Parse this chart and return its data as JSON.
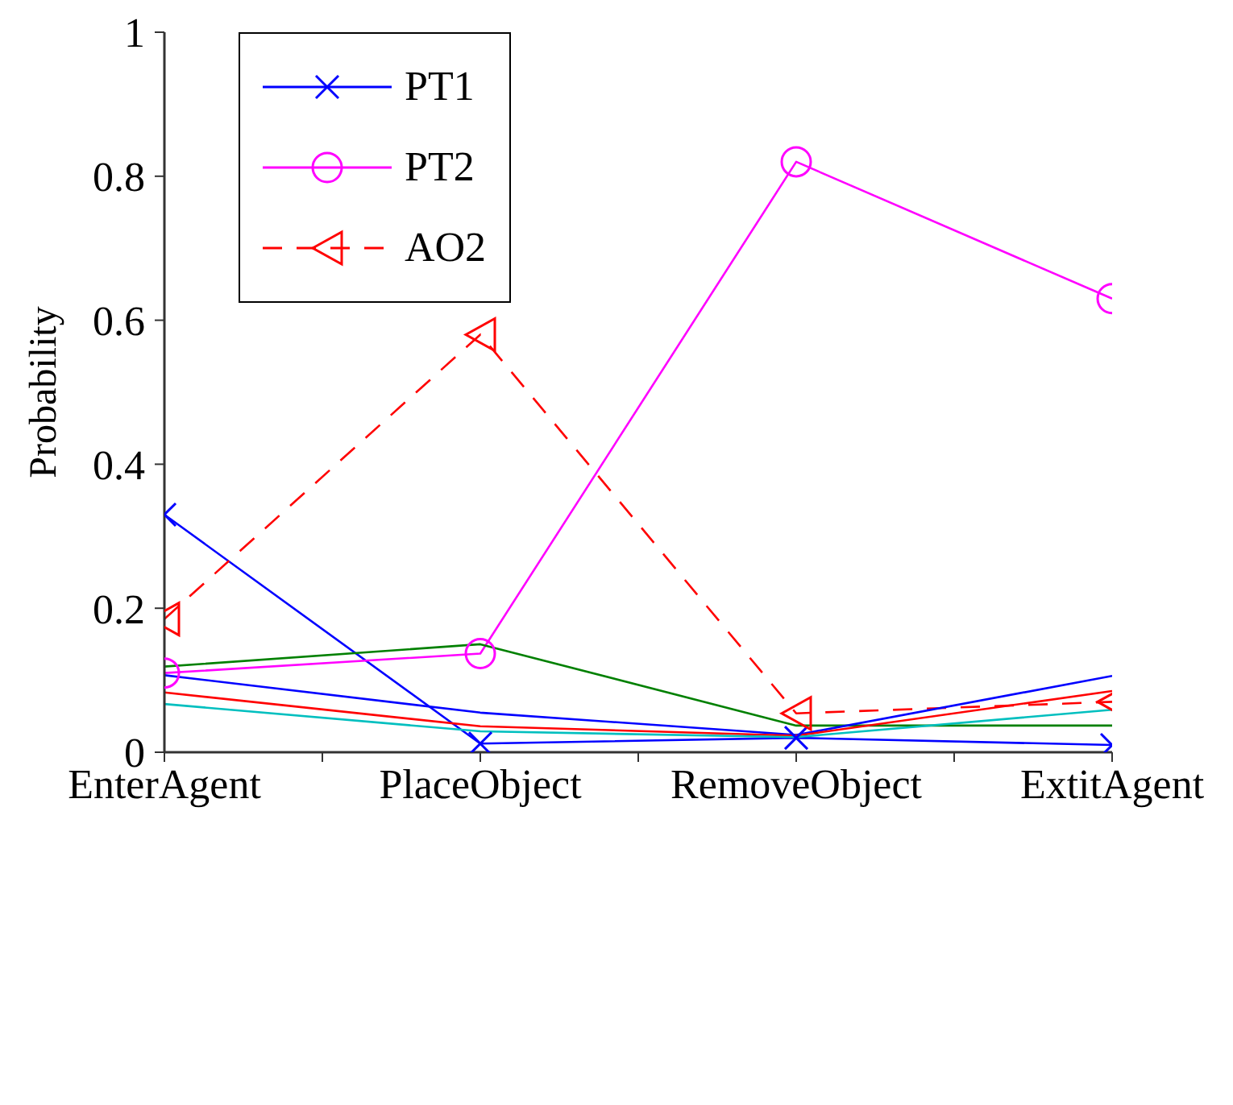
{
  "chart_data": {
    "type": "line",
    "ylabel": "Probability",
    "categories": [
      "EnterAgent",
      "PlaceObject",
      "RemoveObject",
      "ExtitAgent"
    ],
    "series": [
      {
        "name": "PT1",
        "color": "#0000ff",
        "marker": "cross",
        "line_style": "solid",
        "values": [
          0.33,
          0.012,
          0.02,
          0.01
        ]
      },
      {
        "name": "PT2",
        "color": "#ff00ff",
        "marker": "circle",
        "line_style": "solid",
        "values": [
          0.11,
          0.137,
          0.82,
          0.63
        ]
      },
      {
        "name": "AO2",
        "color": "#ff0000",
        "marker": "triangle",
        "line_style": "dashed",
        "values": [
          0.185,
          0.58,
          0.054,
          0.07
        ]
      },
      {
        "color": "#008000",
        "marker": "none",
        "line_style": "solid",
        "values": [
          0.119,
          0.15,
          0.037,
          0.037
        ]
      },
      {
        "color": "#0000ff",
        "marker": "none",
        "line_style": "solid",
        "values": [
          0.107,
          0.055,
          0.024,
          0.106
        ]
      },
      {
        "color": "#ff0000",
        "marker": "none",
        "line_style": "solid",
        "values": [
          0.083,
          0.036,
          0.023,
          0.085
        ]
      },
      {
        "color": "#00bfbf",
        "marker": "none",
        "line_style": "solid",
        "values": [
          0.067,
          0.029,
          0.021,
          0.059
        ]
      }
    ],
    "ylim": [
      0,
      1
    ],
    "yticks": [
      0,
      0.2,
      0.4,
      0.6,
      0.8,
      1
    ],
    "grid": false,
    "legend": "top left"
  }
}
